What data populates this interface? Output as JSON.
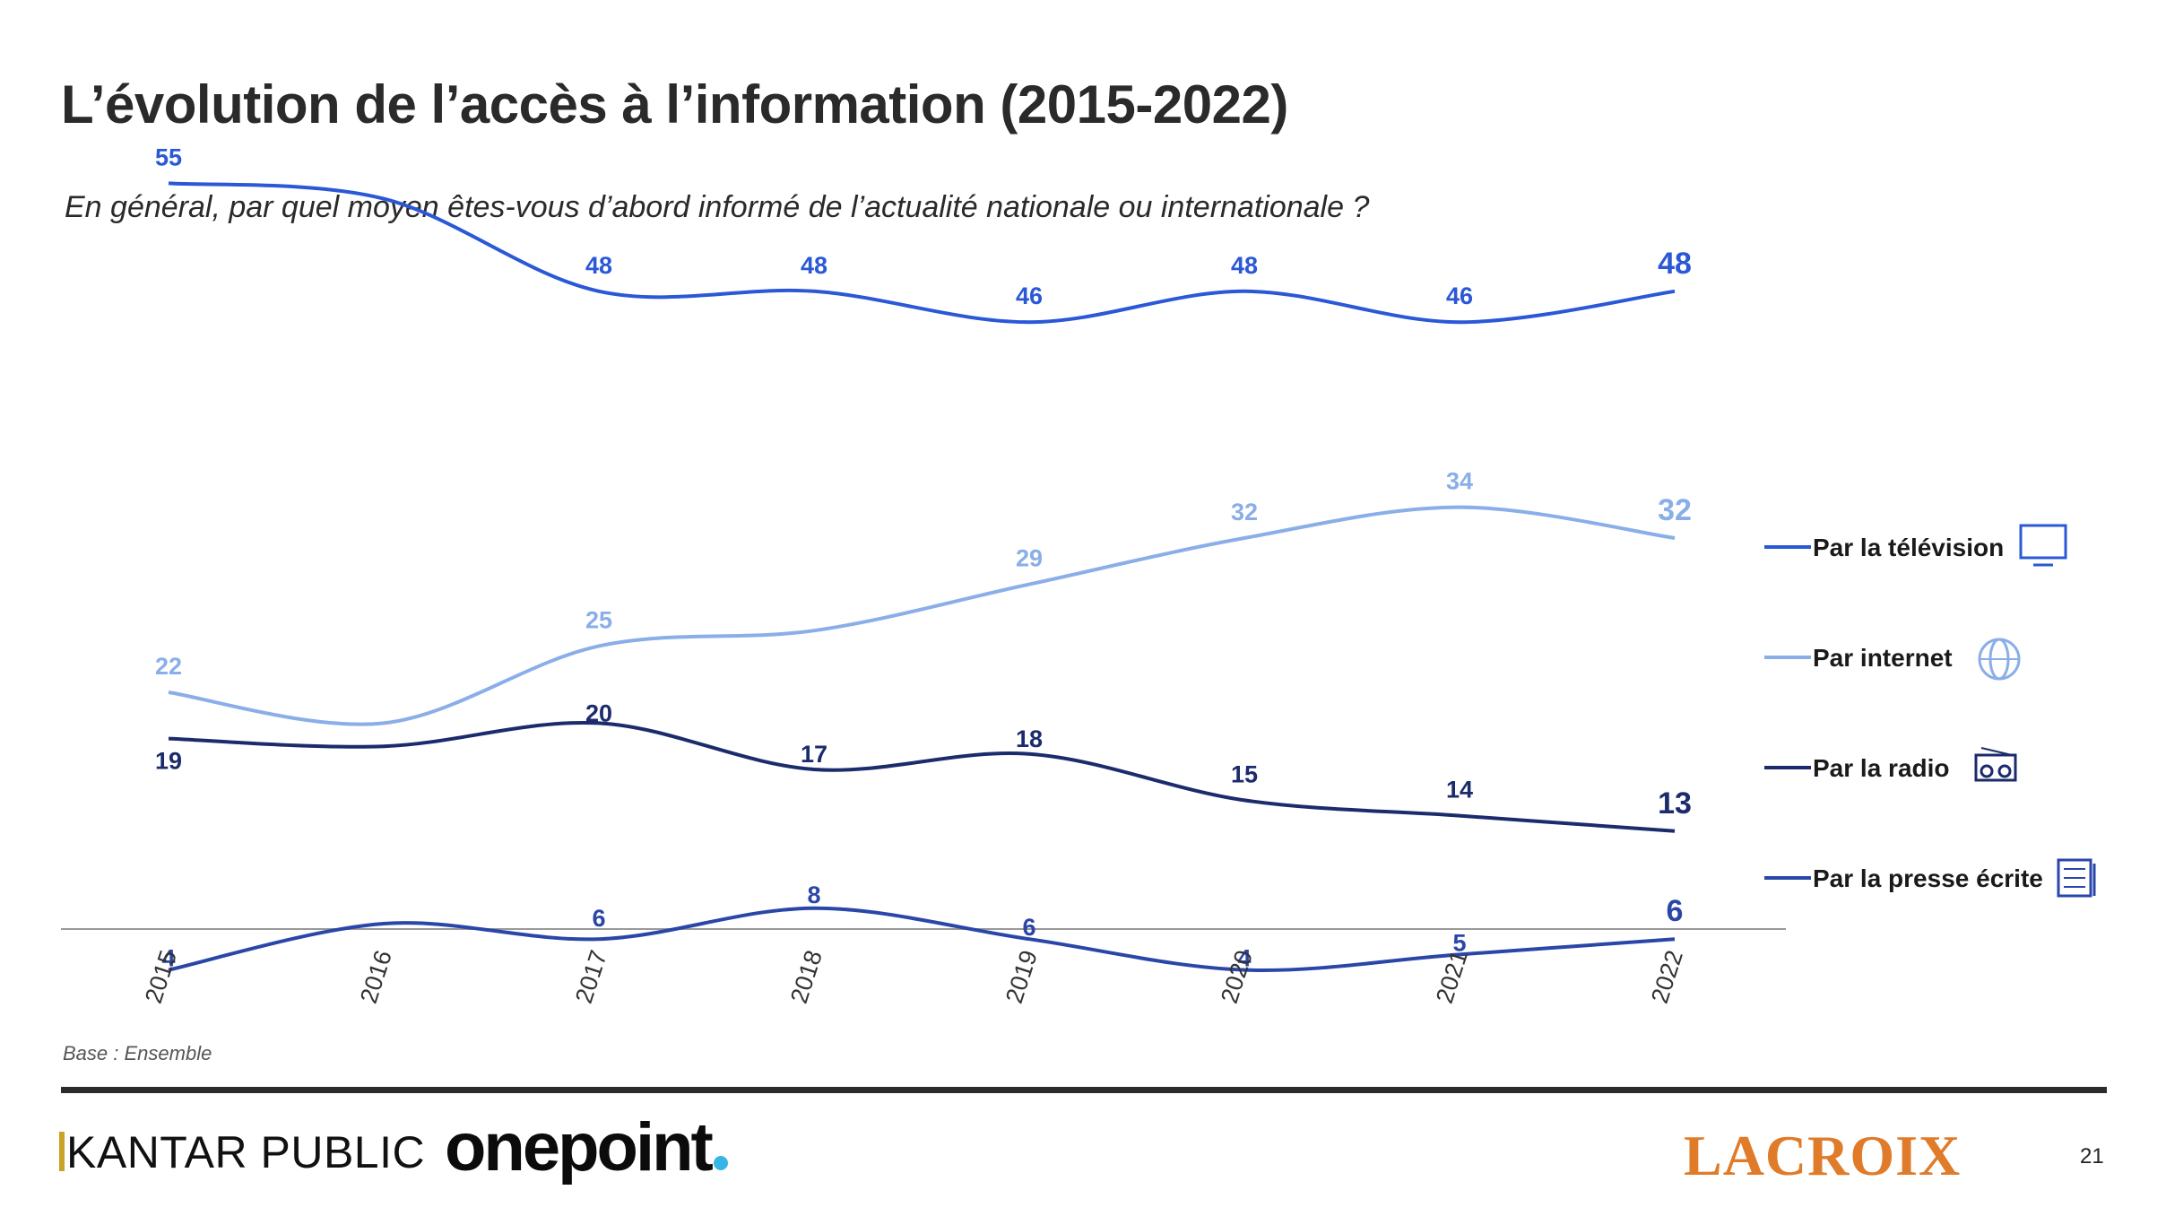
{
  "slide": {
    "title": "L’évolution de l’accès à l’information (2015-2022)",
    "subtitle": "En général, par quel moyen êtes-vous d’abord informé de l’actualité nationale ou internationale ?",
    "base_note": "Base : Ensemble",
    "page_number": "21"
  },
  "logos": {
    "kantar": "KANTAR PUBLIC",
    "onepoint": "onepoint",
    "lacroix": "LACROIX"
  },
  "colors": {
    "television": "#2a58d6",
    "internet": "#8aaee8",
    "radio": "#1b2b6b",
    "presse": "#2a46a8",
    "axis": "#999999"
  },
  "chart_data": {
    "type": "line",
    "x": [
      "2015",
      "2016",
      "2017",
      "2018",
      "2019",
      "2020",
      "2021",
      "2022"
    ],
    "ylim": [
      0,
      60
    ],
    "grid": false,
    "legend": "right",
    "series": [
      {
        "name": "Par la télévision",
        "key": "television",
        "icon": "tv-icon",
        "values": [
          55,
          54,
          48,
          48,
          46,
          48,
          46,
          48
        ],
        "labels": [
          "55",
          null,
          "48",
          "48",
          "46",
          "48",
          "46",
          "48"
        ]
      },
      {
        "name": "Par internet",
        "key": "internet",
        "icon": "www-globe-icon",
        "values": [
          22,
          20,
          25,
          26,
          29,
          32,
          34,
          32
        ],
        "labels": [
          "22",
          null,
          "25",
          null,
          "29",
          "32",
          "34",
          "32"
        ]
      },
      {
        "name": "Par la radio",
        "key": "radio",
        "icon": "radio-icon",
        "values": [
          19,
          18.5,
          20,
          17,
          18,
          15,
          14,
          13
        ],
        "labels": [
          "19",
          null,
          "20",
          "17",
          "18",
          "15",
          "14",
          "13"
        ]
      },
      {
        "name": "Par la presse écrite",
        "key": "presse",
        "icon": "newspaper-icon",
        "values": [
          4,
          7,
          6,
          8,
          6,
          4,
          5,
          6
        ],
        "labels": [
          "4",
          null,
          "6",
          "8",
          "6",
          "4",
          "5",
          "6"
        ]
      }
    ]
  }
}
